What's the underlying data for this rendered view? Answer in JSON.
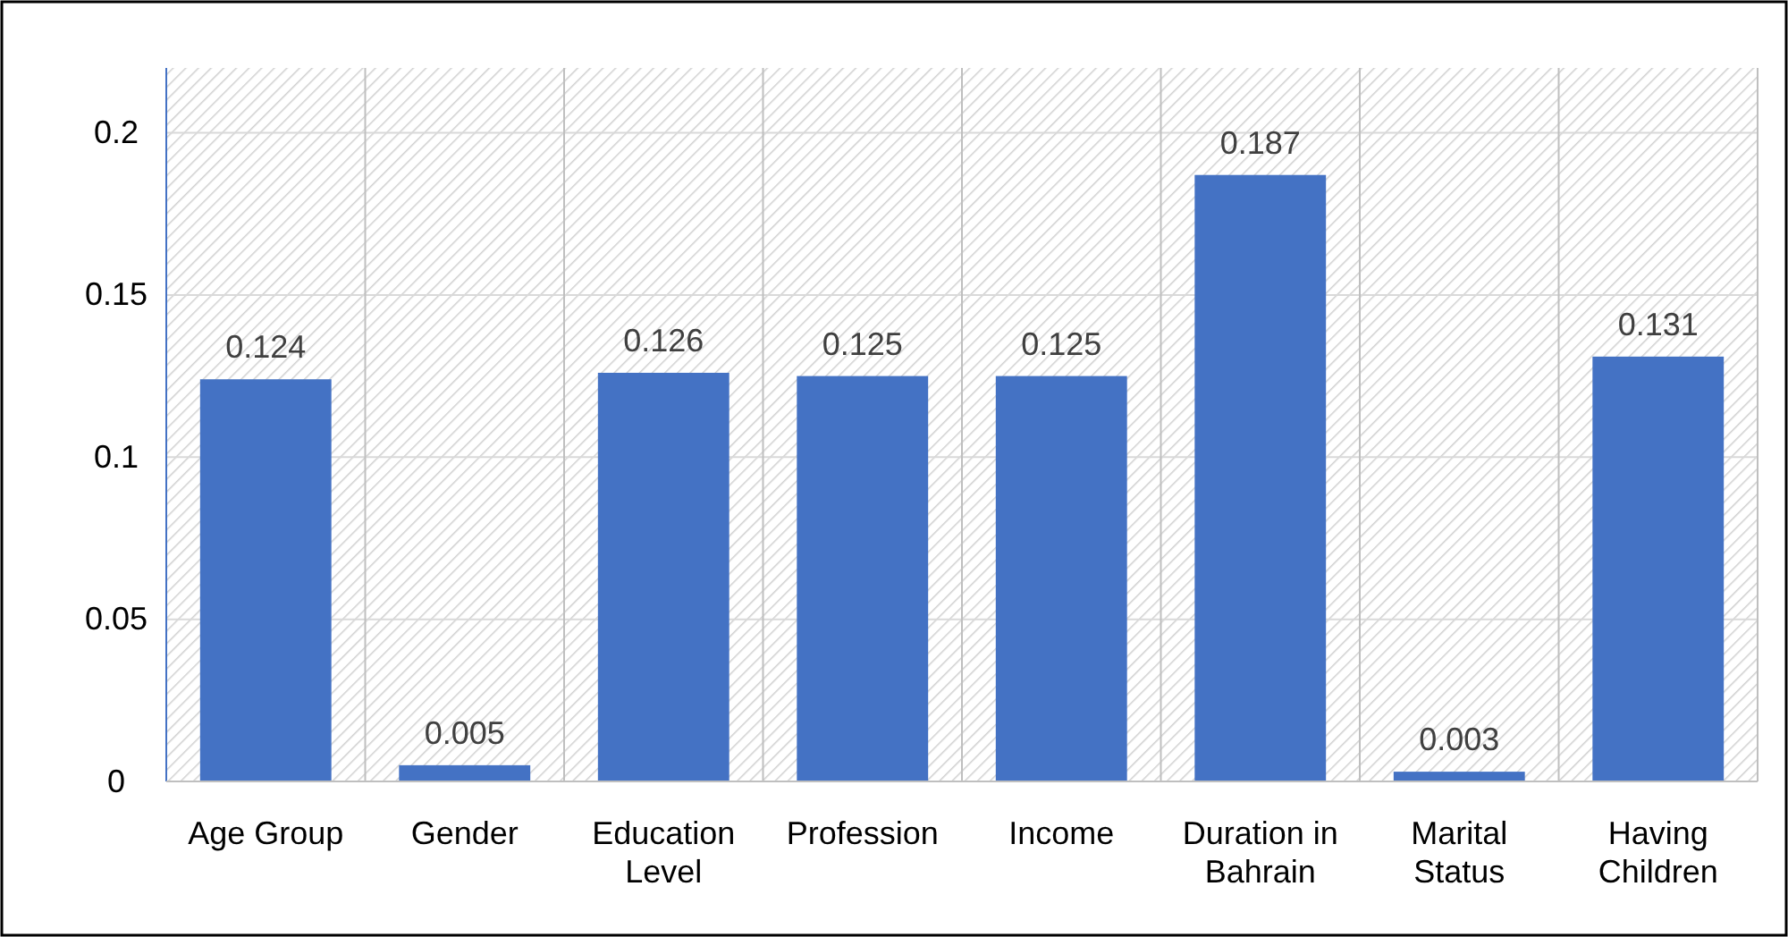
{
  "chart_data": {
    "type": "bar",
    "categories": [
      "Age Group",
      "Gender",
      "Education Level",
      "Profession",
      "Income",
      "Duration in Bahrain",
      "Marital Status",
      "Having Children"
    ],
    "values": [
      0.124,
      0.005,
      0.126,
      0.125,
      0.125,
      0.187,
      0.003,
      0.131
    ],
    "color": "#4472c4",
    "ylim": [
      0,
      0.22
    ],
    "yticks": [
      0,
      0.05,
      0.1,
      0.15,
      0.2
    ],
    "grid": true,
    "data_labels": true
  }
}
